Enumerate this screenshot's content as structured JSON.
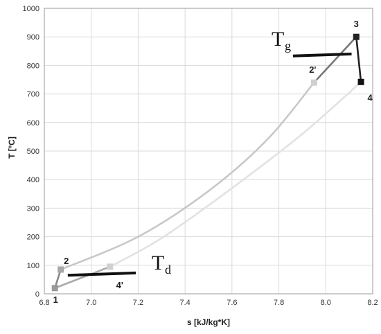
{
  "chart_data": {
    "type": "line",
    "xlabel": "s [kJ/kg*K]",
    "ylabel": "T [ºC]",
    "xlim": [
      6.8,
      8.2
    ],
    "ylim": [
      0,
      1000
    ],
    "x_ticks": [
      "6.8",
      "7.0",
      "7.2",
      "7.4",
      "7.6",
      "7.8",
      "8.0",
      "8.2"
    ],
    "y_ticks": [
      "0",
      "100",
      "200",
      "300",
      "400",
      "500",
      "600",
      "700",
      "800",
      "900",
      "1000"
    ],
    "grid": true,
    "series": [
      {
        "color": "#888888",
        "points": [
          [
            6.845,
            20
          ],
          [
            6.87,
            85
          ]
        ]
      },
      {
        "color": "#c8c8c8",
        "points": [
          [
            6.87,
            85
          ],
          [
            7.2,
            200
          ],
          [
            7.5,
            360
          ],
          [
            7.75,
            540
          ],
          [
            7.95,
            740
          ]
        ]
      },
      {
        "color": "#777777",
        "points": [
          [
            7.95,
            740
          ],
          [
            8.13,
            900
          ]
        ]
      },
      {
        "color": "#222222",
        "points": [
          [
            8.13,
            900
          ],
          [
            8.15,
            742
          ]
        ]
      },
      {
        "color": "#e2e2e2",
        "points": [
          [
            8.15,
            742
          ],
          [
            7.9,
            560
          ],
          [
            7.6,
            370
          ],
          [
            7.3,
            195
          ],
          [
            7.08,
            95
          ]
        ]
      },
      {
        "color": "#aaaaaa",
        "points": [
          [
            7.08,
            95
          ],
          [
            6.845,
            20
          ]
        ]
      }
    ],
    "markers": [
      {
        "label": "1",
        "x": 6.845,
        "y": 20,
        "color": "#999999"
      },
      {
        "label": "2",
        "x": 6.87,
        "y": 85,
        "color": "#a8a8a8"
      },
      {
        "label": "2'",
        "x": 7.95,
        "y": 740,
        "color": "#cfcfcf"
      },
      {
        "label": "3",
        "x": 8.13,
        "y": 900,
        "color": "#222222"
      },
      {
        "label": "4",
        "x": 8.15,
        "y": 742,
        "color": "#111111"
      },
      {
        "label": "4'",
        "x": 7.08,
        "y": 95,
        "color": "#d0d0d0"
      }
    ],
    "annotations": [
      {
        "text": "T",
        "sub": "g",
        "line": [
          [
            7.86,
            833
          ],
          [
            8.11,
            840
          ]
        ]
      },
      {
        "text": "T",
        "sub": "d",
        "line": [
          [
            6.9,
            65
          ],
          [
            7.19,
            73
          ]
        ]
      }
    ]
  }
}
